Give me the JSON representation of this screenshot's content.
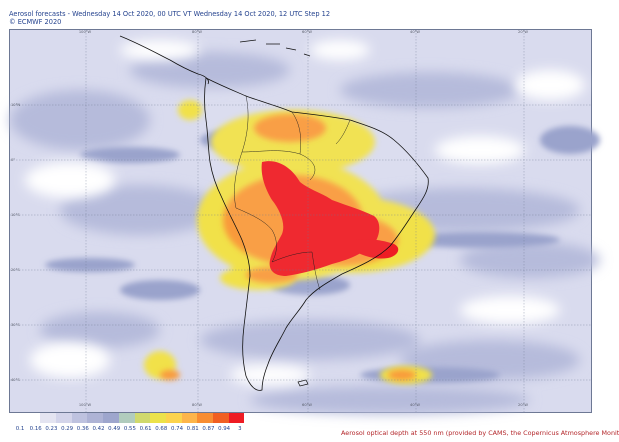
{
  "header": {
    "line1": "Aerosol forecasts - Wednesday 14 Oct 2020, 00 UTC VT Wednesday 14 Oct 2020, 12 UTC Step 12",
    "line2": "© ECMWF 2020"
  },
  "map": {
    "longitude_labels": [
      "100°W",
      "80°W",
      "60°W",
      "40°W",
      "20°W"
    ],
    "latitude_labels": [
      "10°N",
      "0°",
      "10°S",
      "20°S",
      "30°S",
      "40°S",
      "50°S"
    ],
    "ocean_color": "#ffffff",
    "coastline_color": "#111111"
  },
  "legend": {
    "ticks": [
      "0.1",
      "0.16",
      "0.23",
      "0.29",
      "0.36",
      "0.42",
      "0.49",
      "0.55",
      "0.61",
      "0.68",
      "0.74",
      "0.81",
      "0.87",
      "0.94",
      "3"
    ],
    "colors": [
      "#ffffff",
      "#ffffff",
      "#e4e4f1",
      "#d3d4ea",
      "#bec2df",
      "#aeb3d5",
      "#9ea6cd",
      "#b1ccbd",
      "#d0d96d",
      "#ece24a",
      "#fcd34d",
      "#fdb54b",
      "#f88d33",
      "#f15f22",
      "#ee1c24"
    ],
    "caption": "Aerosol optical depth at 550 nm (provided by CAMS, the Copernicus Atmosphere Monit"
  }
}
